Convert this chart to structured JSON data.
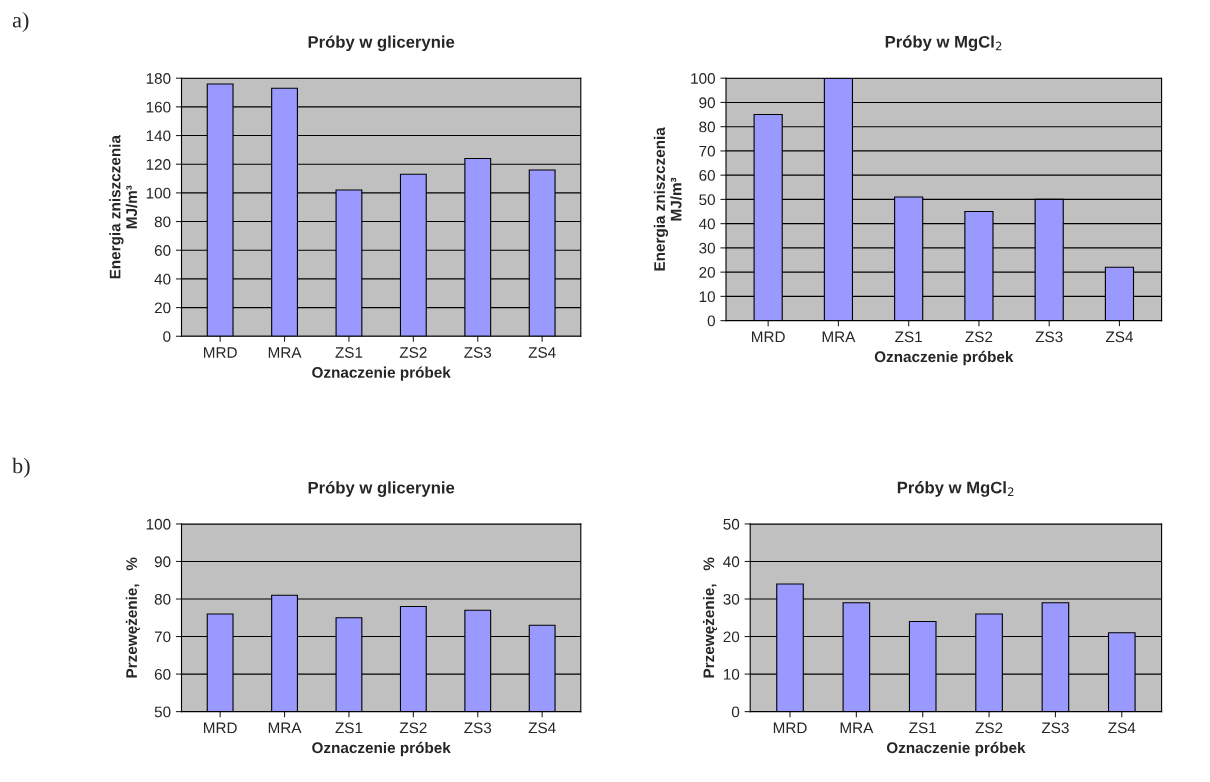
{
  "chart_data": [
    {
      "type": "bar",
      "title": "Próby w glicerynie",
      "xlabel": "Oznaczenie próbek",
      "ylabel": "Energia zniszczenia\nMJ/m³",
      "annotations": [
        "a)"
      ],
      "categories": [
        "MRD",
        "MRA",
        "ZS1",
        "ZS2",
        "ZS3",
        "ZS4"
      ],
      "values": [
        176,
        173,
        102,
        113,
        124,
        116
      ],
      "color": "#9999ff",
      "ylim": [
        0,
        180
      ],
      "yticks": [
        0,
        20,
        40,
        60,
        80,
        100,
        120,
        140,
        160,
        180
      ],
      "grid": "y",
      "legend": false
    },
    {
      "type": "bar",
      "title": "Próby w MgCl$_{2}$",
      "xlabel": "Oznaczenie próbek",
      "ylabel": "Energia zniszczenia\nMJ/m³",
      "categories": [
        "MRD",
        "MRA",
        "ZS1",
        "ZS2",
        "ZS3",
        "ZS4"
      ],
      "values": [
        85,
        100,
        51,
        45,
        50,
        22
      ],
      "color": "#9999ff",
      "ylim": [
        0,
        100
      ],
      "yticks": [
        0,
        10,
        20,
        30,
        40,
        50,
        60,
        70,
        80,
        90,
        100
      ],
      "grid": "y",
      "legend": false
    },
    {
      "type": "bar",
      "title": "Próby w glicerynie",
      "xlabel": "Oznaczenie próbek",
      "ylabel": "Przewężenie,   %",
      "annotations": [
        "b)"
      ],
      "categories": [
        "MRD",
        "MRA",
        "ZS1",
        "ZS2",
        "ZS3",
        "ZS4"
      ],
      "values": [
        76,
        81,
        75,
        78,
        77,
        73
      ],
      "color": "#9999ff",
      "ylim": [
        50,
        100
      ],
      "yticks": [
        50,
        60,
        70,
        80,
        90,
        100
      ],
      "grid": "y",
      "legend": false
    },
    {
      "type": "bar",
      "title": "Próby w MgCl$_{2}$",
      "xlabel": "Oznaczenie próbek",
      "ylabel": "Przewężenie,   %",
      "categories": [
        "MRD",
        "MRA",
        "ZS1",
        "ZS2",
        "ZS3",
        "ZS4"
      ],
      "values": [
        34,
        29,
        24,
        26,
        29,
        21
      ],
      "color": "#9999ff",
      "ylim": [
        0,
        50
      ],
      "yticks": [
        0,
        10,
        20,
        30,
        40,
        50
      ],
      "grid": "y",
      "legend": false
    }
  ]
}
